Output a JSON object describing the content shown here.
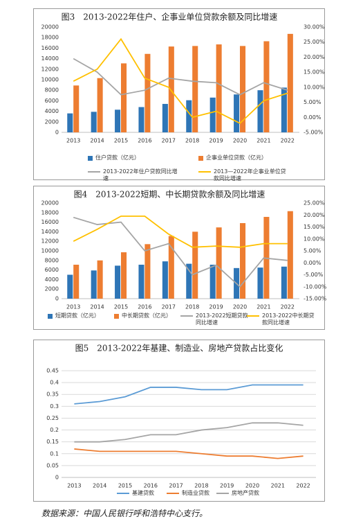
{
  "chart_data": [
    {
      "type": "bar",
      "title": "图3　2013-2022年住户、企事业单位贷款余额及同比增速",
      "categories": [
        "2013",
        "2014",
        "2015",
        "2016",
        "2017",
        "2018",
        "2019",
        "2020",
        "2021",
        "2022"
      ],
      "ylim": [
        0,
        20000
      ],
      "yticks": [
        0,
        2000,
        4000,
        6000,
        8000,
        10000,
        12000,
        14000,
        16000,
        18000,
        20000
      ],
      "y2lim": [
        -5,
        30
      ],
      "y2ticks": [
        {
          "value": -5,
          "label": "-5.00%"
        },
        {
          "value": 0,
          "label": "0.00%"
        },
        {
          "value": 5,
          "label": "5.00%"
        },
        {
          "value": 10,
          "label": "10.00%"
        },
        {
          "value": 15,
          "label": "15.00%"
        },
        {
          "value": 20,
          "label": "20.00%"
        },
        {
          "value": 25,
          "label": "25.00%"
        },
        {
          "value": 30,
          "label": "30.00%"
        }
      ],
      "grid": false,
      "series": [
        {
          "name": "住户贷款（亿元）",
          "type": "bar",
          "color": "#2e75b6",
          "values": [
            3600,
            3900,
            4300,
            4800,
            5400,
            6100,
            6600,
            7200,
            8000,
            8500
          ]
        },
        {
          "name": "企事业单位贷款（亿元）",
          "type": "bar",
          "color": "#ed7d31",
          "values": [
            8900,
            10300,
            13100,
            14900,
            16300,
            16400,
            16700,
            16400,
            17300,
            18700
          ]
        },
        {
          "name": "2013-2022年住户贷款同比增速",
          "type": "line",
          "axis": "y2",
          "color": "#a5a5a5",
          "values": [
            19.5,
            15,
            7.5,
            9,
            13,
            12,
            11.5,
            7.5,
            11.5,
            9
          ]
        },
        {
          "name": "2013—2022年企事业单位贷款同比增速",
          "type": "line",
          "axis": "y2",
          "color": "#ffc000",
          "values": [
            12,
            16,
            26,
            13,
            10,
            0,
            2,
            -2,
            5.5,
            8
          ]
        }
      ]
    },
    {
      "type": "bar",
      "title": "图4　2013-2022短期、中长期贷款余额及同比增速",
      "categories": [
        "2013",
        "2014",
        "2015",
        "2016",
        "2017",
        "2018",
        "2019",
        "2020",
        "2021",
        "2022"
      ],
      "ylim": [
        0,
        20000
      ],
      "yticks": [
        0,
        2000,
        4000,
        6000,
        8000,
        10000,
        12000,
        14000,
        16000,
        18000,
        20000
      ],
      "y2lim": [
        -15,
        25
      ],
      "y2ticks": [
        {
          "value": -15,
          "label": "-15.00%"
        },
        {
          "value": -10,
          "label": "-10.00%"
        },
        {
          "value": -5,
          "label": "-5.00%"
        },
        {
          "value": 0,
          "label": "0.00%"
        },
        {
          "value": 5,
          "label": "5.00%"
        },
        {
          "value": 10,
          "label": "10.00%"
        },
        {
          "value": 15,
          "label": "15.00%"
        },
        {
          "value": 20,
          "label": "20.00%"
        },
        {
          "value": 25,
          "label": "25.00%"
        }
      ],
      "grid": false,
      "series": [
        {
          "name": "短期贷款（亿元）",
          "type": "bar",
          "color": "#2e75b6",
          "values": [
            5000,
            5900,
            6900,
            7100,
            7800,
            7300,
            7100,
            6400,
            6500,
            6700
          ]
        },
        {
          "name": "中长期贷款（亿元）",
          "type": "bar",
          "color": "#ed7d31",
          "values": [
            7100,
            8000,
            9700,
            11400,
            13100,
            14000,
            14900,
            15800,
            17100,
            18300
          ]
        },
        {
          "name": "2013-2022短期贷款同比增速",
          "type": "line",
          "axis": "y2",
          "color": "#a5a5a5",
          "values": [
            19,
            16,
            17,
            5,
            8,
            -5,
            -1,
            -10,
            2,
            1
          ]
        },
        {
          "name": "2013-2022中长期贷款同比增速",
          "type": "line",
          "axis": "y2",
          "color": "#ffc000",
          "values": [
            9,
            14,
            19.5,
            19.5,
            12,
            6.5,
            7,
            6.5,
            8,
            8
          ]
        }
      ]
    },
    {
      "type": "line",
      "title": "图5　2013-2022年基建、制造业、房地产贷款占比变化",
      "categories": [
        "2013",
        "2014",
        "2015",
        "2016",
        "2017",
        "2018",
        "2019",
        "2020",
        "2021",
        "2022"
      ],
      "ylim": [
        0,
        0.45
      ],
      "yticks": [
        0,
        0.05,
        0.1,
        0.15,
        0.2,
        0.25,
        0.3,
        0.35,
        0.4,
        0.45
      ],
      "grid": true,
      "series": [
        {
          "name": "基建贷款",
          "type": "line",
          "color": "#5b9bd5",
          "values": [
            0.31,
            0.32,
            0.34,
            0.38,
            0.38,
            0.37,
            0.37,
            0.39,
            0.39,
            0.39
          ]
        },
        {
          "name": "制造业贷款",
          "type": "line",
          "color": "#ed7d31",
          "values": [
            0.12,
            0.11,
            0.11,
            0.11,
            0.11,
            0.1,
            0.09,
            0.09,
            0.08,
            0.09
          ]
        },
        {
          "name": "房地产贷款",
          "type": "line",
          "color": "#a5a5a5",
          "values": [
            0.15,
            0.15,
            0.16,
            0.18,
            0.18,
            0.2,
            0.21,
            0.23,
            0.23,
            0.22
          ]
        }
      ]
    }
  ],
  "source": "数据来源：中国人民银行呼和浩特中心支行。"
}
